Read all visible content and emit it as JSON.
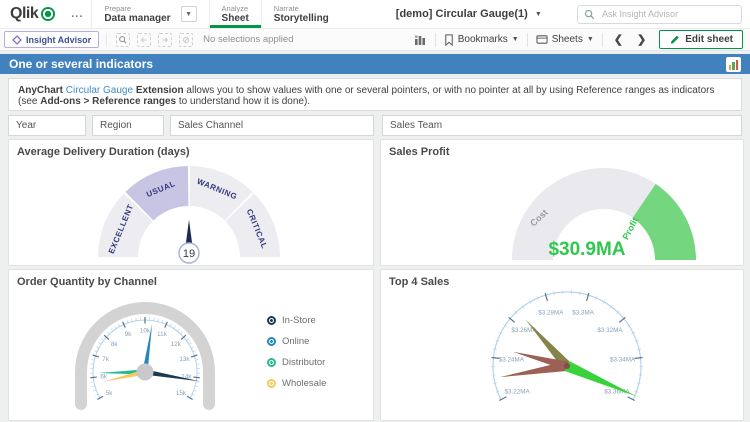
{
  "topbar": {
    "logo_text": "Qlik",
    "more_label": "...",
    "nav": [
      {
        "section": "Prepare",
        "item": "Data manager"
      },
      {
        "section": "Analyze",
        "item": "Sheet"
      },
      {
        "section": "Narrate",
        "item": "Storytelling"
      }
    ],
    "app_title": "[demo] Circular Gauge(1)",
    "search_placeholder": "Ask Insight Advisor"
  },
  "toolbar": {
    "insight_advisor_label": "Insight Advisor",
    "selections_status": "No selections applied",
    "bookmarks_label": "Bookmarks",
    "sheets_label": "Sheets",
    "prev_label": "❮",
    "next_label": "❯",
    "edit_sheet_label": "Edit sheet"
  },
  "sheet_header": {
    "title": "One or several indicators",
    "description_parts": {
      "p1": "AnyChart",
      "p2": "Circular Gauge",
      "p3": "Extension",
      "p4": "allows you to show values with one or several pointers, or with no pointer at all by using Reference ranges as indicators (see",
      "p5": "Add-ons > Reference ranges",
      "p6": "to understand how it is done)."
    }
  },
  "filters": {
    "year": "Year",
    "region": "Region",
    "sales_channel": "Sales Channel",
    "sales_team": "Sales Team"
  },
  "panels": {
    "delivery": {
      "title": "Average Delivery Duration (days)"
    },
    "profit": {
      "title": "Sales Profit"
    },
    "orders": {
      "title": "Order Quantity by Channel",
      "legend": [
        {
          "label": "In-Store",
          "color": "#1b3a52"
        },
        {
          "label": "Online",
          "color": "#2787b8"
        },
        {
          "label": "Distributor",
          "color": "#28b795"
        },
        {
          "label": "Wholesale",
          "color": "#f6c95f"
        }
      ]
    },
    "top4": {
      "title": "Top 4 Sales"
    }
  },
  "chart_data": [
    {
      "id": "delivery_gauge",
      "type": "gauge",
      "title": "Average Delivery Duration (days)",
      "value": 19,
      "value_label": "19",
      "segments": [
        {
          "label": "EXCELLENT",
          "color": "#ececf1"
        },
        {
          "label": "USUAL",
          "color": "#c7c4e4",
          "highlighted": true
        },
        {
          "label": "WARNING",
          "color": "#ececf1"
        },
        {
          "label": "CRITICAL",
          "color": "#ececf1"
        }
      ],
      "segment_label_color": "#333a78",
      "needle_color": "#1d2b50"
    },
    {
      "id": "profit_gauge",
      "type": "gauge",
      "title": "Sales Profit",
      "center_text": "$30.9MA",
      "center_text_color": "#2fc84e",
      "profit_fraction": 0.69,
      "ranges": [
        {
          "label": "Cost",
          "color": "#e9e9ee",
          "text_color": "#9b9ba3"
        },
        {
          "label": "Profit",
          "color": "#74d67e",
          "text_color": "#2fc84e"
        }
      ]
    },
    {
      "id": "orders_gauge",
      "type": "gauge",
      "title": "Order Quantity by Channel",
      "axis": {
        "min": 5000,
        "max": 15000,
        "major_step": 1000,
        "tick_labels": [
          "5k",
          "6k",
          "7k",
          "8k",
          "9k",
          "10k",
          "11k",
          "12k",
          "13k",
          "14k",
          "15k"
        ],
        "start_angle": 210,
        "end_angle": -30
      },
      "needles": [
        {
          "name": "In-Store",
          "value": 14150,
          "color": "#1b3a52",
          "length": 56
        },
        {
          "name": "Online",
          "value": 10350,
          "color": "#2787b8",
          "length": 49
        },
        {
          "name": "Distributor",
          "value": 6200,
          "color": "#28b795",
          "length": 47
        },
        {
          "name": "Wholesale",
          "value": 5700,
          "color": "#f6c95f",
          "length": 43
        }
      ]
    },
    {
      "id": "top4_gauge",
      "type": "gauge",
      "title": "Top 4 Sales",
      "axis": {
        "min": 3.22,
        "max": 3.36,
        "major_step": 0.02,
        "tick_labels": [
          "$3.22MA",
          "$3.24MA",
          "$3.26MA",
          "$3.28MA",
          "$3.3MA",
          "$3.32MA",
          "$3.34MA",
          "$3.36MA"
        ],
        "start_angle": 207,
        "end_angle": -27
      },
      "needles": [
        {
          "value": 3.265,
          "color": "#85854a",
          "length": 62,
          "half_width": 5
        },
        {
          "value": 3.245,
          "color": "#9c6055",
          "length": 56,
          "half_width": 4.5
        },
        {
          "value": 3.2305,
          "color": "#9c6055",
          "length": 68,
          "half_width": 5
        },
        {
          "value": 3.358,
          "color": "#3ad23a",
          "length": 76,
          "half_width": 5.5
        }
      ]
    }
  ]
}
